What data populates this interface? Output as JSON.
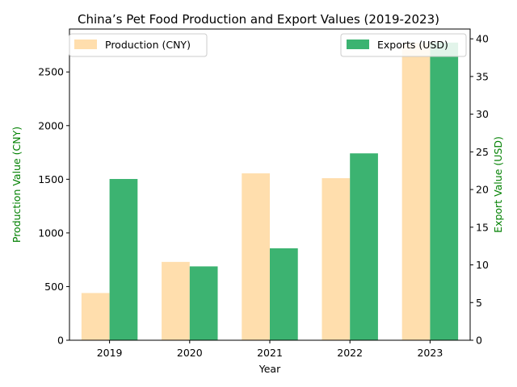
{
  "chart_data": {
    "type": "bar",
    "title": "China’s Pet Food Production and Export Values (2019-2023)",
    "xlabel": "Year",
    "categories": [
      "2019",
      "2020",
      "2021",
      "2022",
      "2023"
    ],
    "y_left": {
      "label": "Production Value (CNY)",
      "lim": [
        0,
        2900
      ],
      "ticks": [
        0,
        500,
        1000,
        1500,
        2000,
        2500
      ],
      "color": "#008000"
    },
    "y_right": {
      "label": "Export Value (USD)",
      "lim": [
        0,
        41.3
      ],
      "ticks": [
        0,
        5,
        10,
        15,
        20,
        25,
        30,
        35,
        40
      ],
      "color": "#008000"
    },
    "series": [
      {
        "name": "Production (CNY)",
        "axis": "left",
        "color": "#ffdead",
        "values": [
          440,
          730,
          1555,
          1510,
          2770
        ]
      },
      {
        "name": "Exports (USD)",
        "axis": "right",
        "color": "#3cb371",
        "values": [
          21.4,
          9.8,
          12.2,
          24.8,
          39.5
        ]
      }
    ],
    "legend": {
      "left_series": "top-left",
      "right_series": "top-right"
    },
    "grid": false
  }
}
